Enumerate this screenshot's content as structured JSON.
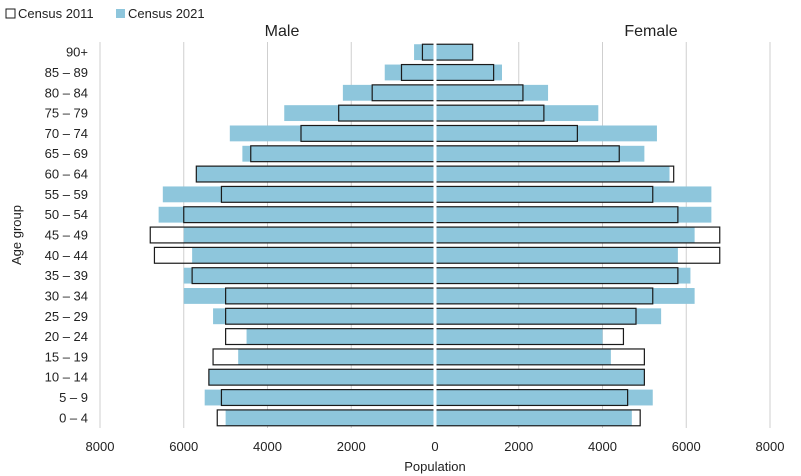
{
  "chart_data": {
    "type": "bar",
    "orientation": "horizontal-population-pyramid",
    "title": "",
    "left_label": "Male",
    "right_label": "Female",
    "xlabel": "Population",
    "ylabel": "Age group",
    "xlim": [
      -8000,
      8000
    ],
    "x_ticks": [
      -8000,
      -6000,
      -4000,
      -2000,
      0,
      2000,
      4000,
      6000,
      8000
    ],
    "x_tick_labels": [
      "8000",
      "6000",
      "4000",
      "2000",
      "0",
      "2000",
      "4000",
      "6000",
      "8000"
    ],
    "grid": "vertical",
    "legend_position": "top-left",
    "categories": [
      "0 – 4",
      "5 – 9",
      "10 – 14",
      "15 – 19",
      "20 – 24",
      "25 – 29",
      "30 – 34",
      "35 – 39",
      "40 – 44",
      "45 – 49",
      "50 – 54",
      "55 – 59",
      "60 – 64",
      "65 – 69",
      "70 – 74",
      "75 – 79",
      "80 – 84",
      "85 – 89",
      "90+"
    ],
    "series": [
      {
        "name": "Census 2021",
        "color": "#8ec6dc",
        "male": [
          5000,
          5500,
          5400,
          4700,
          4500,
          5300,
          6000,
          6000,
          5800,
          6000,
          6600,
          6500,
          5700,
          4600,
          4900,
          3600,
          2200,
          1200,
          500
        ],
        "female": [
          4700,
          5200,
          5000,
          4200,
          4000,
          5400,
          6200,
          6100,
          5800,
          6200,
          6600,
          6600,
          5600,
          5000,
          5300,
          3900,
          2700,
          1600,
          900
        ]
      },
      {
        "name": "Census 2011",
        "color": "#ffffff",
        "male": [
          5200,
          5100,
          5400,
          5300,
          5000,
          5000,
          5000,
          5800,
          6700,
          6800,
          6000,
          5100,
          5700,
          4400,
          3200,
          2300,
          1500,
          800,
          300
        ],
        "female": [
          4900,
          4600,
          5000,
          5000,
          4500,
          4800,
          5200,
          5800,
          6800,
          6800,
          5800,
          5200,
          5700,
          4400,
          3400,
          2600,
          2100,
          1400,
          900
        ]
      }
    ]
  }
}
